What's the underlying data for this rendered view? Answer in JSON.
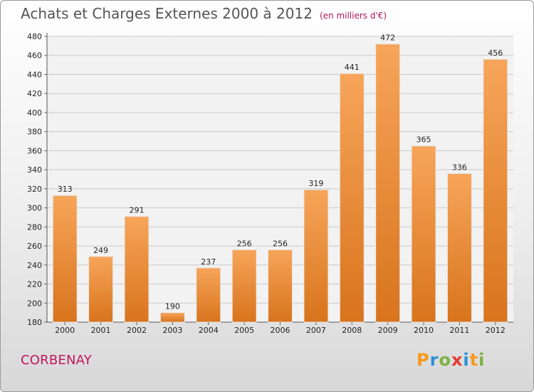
{
  "header": {
    "title": "Achats et Charges Externes 2000 à 2012",
    "subtitle": "(en milliers d'€)"
  },
  "footer": {
    "place": "CORBENAY",
    "logo": "Proxiti"
  },
  "colors": {
    "bar_light": "#f7a55a",
    "bar_dark": "#d8741c",
    "title": "#555555",
    "accent": "#c2185b",
    "logo_letters": [
      "#f59a1c",
      "#2a8fd8",
      "#7cb342",
      "#e53935",
      "#2a8fd8",
      "#f59a1c",
      "#7cb342"
    ]
  },
  "chart_data": {
    "type": "bar",
    "categories": [
      "2000",
      "2001",
      "2002",
      "2003",
      "2004",
      "2005",
      "2006",
      "2007",
      "2008",
      "2009",
      "2010",
      "2011",
      "2012"
    ],
    "values": [
      313,
      249,
      291,
      190,
      237,
      256,
      256,
      319,
      441,
      472,
      365,
      336,
      456
    ],
    "yticks": [
      180,
      200,
      220,
      240,
      260,
      280,
      300,
      320,
      340,
      360,
      380,
      400,
      420,
      440,
      460,
      480
    ],
    "ylim": [
      180,
      480
    ],
    "grid": true,
    "legend": "none"
  }
}
